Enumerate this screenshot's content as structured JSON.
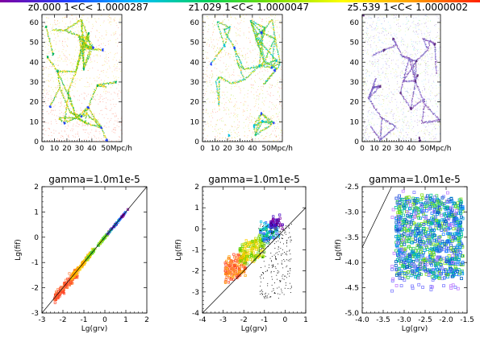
{
  "colorbar": {
    "colors": [
      "#8000a0",
      "#2040ff",
      "#00c0ff",
      "#00d060",
      "#80e000",
      "#ffff00",
      "#ffa000",
      "#ff2000"
    ]
  },
  "chart_data": [
    {
      "type": "scatter",
      "title": "z0.000  1<C< 1.0000287",
      "xlabel": "",
      "ylabel": "",
      "xlim": [
        0,
        64
      ],
      "ylim": [
        0,
        64
      ],
      "x_ticks": [
        0,
        10,
        20,
        30,
        40
      ],
      "x_tick_labels": [
        "0",
        "10",
        "20",
        "30",
        "40"
      ],
      "x_unit_label": "50Mpc/h",
      "y_ticks": [
        0,
        10,
        20,
        30,
        40,
        50,
        60
      ],
      "y_tick_labels": [
        "0",
        "10",
        "20",
        "30",
        "40",
        "50",
        "60"
      ],
      "dominant_colors": [
        "#ff6040",
        "#ffc000",
        "#e0e000",
        "#60d000",
        "#00b060",
        "#2040ff"
      ]
    },
    {
      "type": "scatter",
      "title": "z1.029  1<C< 1.0000047",
      "xlabel": "",
      "ylabel": "",
      "xlim": [
        0,
        64
      ],
      "ylim": [
        0,
        64
      ],
      "x_ticks": [
        0,
        10,
        20,
        30,
        40
      ],
      "x_tick_labels": [
        "0",
        "10",
        "20",
        "30",
        "40"
      ],
      "x_unit_label": "50Mpc/h",
      "y_ticks": [
        0,
        10,
        20,
        30,
        40,
        50,
        60
      ],
      "y_tick_labels": [
        "0",
        "10",
        "20",
        "30",
        "40",
        "50",
        "60"
      ],
      "dominant_colors": [
        "#ff6040",
        "#ffc000",
        "#a0e000",
        "#00c060",
        "#00c0e0",
        "#2040ff"
      ]
    },
    {
      "type": "scatter",
      "title": "z5.539  1<C< 1.0000002",
      "xlabel": "",
      "ylabel": "",
      "xlim": [
        0,
        64
      ],
      "ylim": [
        0,
        64
      ],
      "x_ticks": [
        0,
        10,
        20,
        30,
        40
      ],
      "x_tick_labels": [
        "0",
        "10",
        "20",
        "30",
        "40"
      ],
      "x_unit_label": "50Mpc/h",
      "y_ticks": [
        0,
        10,
        20,
        30,
        40,
        50,
        60
      ],
      "y_tick_labels": [
        "0",
        "10",
        "20",
        "30",
        "40",
        "50",
        "60"
      ],
      "dominant_colors": [
        "#9060c0",
        "#a0a0ff",
        "#80e0ff",
        "#c0ff80",
        "#e0e060"
      ]
    },
    {
      "type": "scatter",
      "title": "gamma=1.0m1e-5",
      "xlabel": "Lg(grv)",
      "ylabel": "Lg(fif)",
      "xlim": [
        -3,
        2
      ],
      "ylim": [
        -3,
        2
      ],
      "x_ticks": [
        -3,
        -2,
        -1,
        0,
        1,
        2
      ],
      "x_tick_labels": [
        "-3",
        "-2",
        "-1",
        "0",
        "1",
        "2"
      ],
      "y_ticks": [
        -3,
        -2,
        -1,
        0,
        1,
        2
      ],
      "y_tick_labels": [
        "-3",
        "-2",
        "-1",
        "0",
        "1",
        "2"
      ],
      "reference_line": [
        [
          -3,
          -3
        ],
        [
          2,
          2
        ]
      ],
      "clusters": [
        {
          "x_range": [
            -2.4,
            -1.3
          ],
          "y_center_offset": -0.05,
          "spread": 0.22,
          "colors": [
            "#ff4020",
            "#ff8040"
          ],
          "n": 140
        },
        {
          "x_range": [
            -1.6,
            -0.6
          ],
          "y_center_offset": 0.0,
          "spread": 0.1,
          "colors": [
            "#ffa000",
            "#ffd000"
          ],
          "n": 110
        },
        {
          "x_range": [
            -0.9,
            0.2
          ],
          "y_center_offset": 0.0,
          "spread": 0.05,
          "colors": [
            "#a0e000",
            "#40d040"
          ],
          "n": 70
        },
        {
          "x_range": [
            0.1,
            1.1
          ],
          "y_center_offset": 0.0,
          "spread": 0.03,
          "colors": [
            "#00c0a0",
            "#2060ff",
            "#8000a0"
          ],
          "n": 45
        }
      ]
    },
    {
      "type": "scatter",
      "title": "gamma=1.0m1e-5",
      "xlabel": "Lg(grv)",
      "ylabel": "Lg(fif)",
      "xlim": [
        -4,
        1
      ],
      "ylim": [
        -4,
        2
      ],
      "x_ticks": [
        -4,
        -3,
        -2,
        -1,
        0,
        1
      ],
      "x_tick_labels": [
        "-4",
        "-3",
        "-2",
        "-1",
        "0",
        "1"
      ],
      "y_ticks": [
        -4,
        -3,
        -2,
        -1,
        0,
        1,
        2
      ],
      "y_tick_labels": [
        "-4",
        "-3",
        "-2",
        "-1",
        "0",
        "1",
        "2"
      ],
      "reference_line": [
        [
          -4,
          -4
        ],
        [
          1,
          1
        ]
      ],
      "clusters": [
        {
          "x_range": [
            -2.9,
            -1.9
          ],
          "y_range": [
            -2.5,
            -1.0
          ],
          "colors": [
            "#ff4020",
            "#ff8040",
            "#ffa000"
          ],
          "n": 170
        },
        {
          "x_range": [
            -2.2,
            -1.0
          ],
          "y_range": [
            -1.6,
            -0.2
          ],
          "colors": [
            "#ffd000",
            "#c0e000",
            "#60d000"
          ],
          "n": 170
        },
        {
          "x_range": [
            -1.2,
            -0.3
          ],
          "y_range": [
            -0.6,
            0.5
          ],
          "colors": [
            "#00c060",
            "#00c0e0",
            "#2060ff"
          ],
          "n": 90
        },
        {
          "x_range": [
            -0.7,
            -0.1
          ],
          "y_range": [
            0.1,
            0.8
          ],
          "colors": [
            "#4000c0",
            "#8000a0"
          ],
          "n": 40
        },
        {
          "x_range": [
            -1.3,
            0.3
          ],
          "y_range": [
            -3.3,
            0.3
          ],
          "colors": [
            "#000000"
          ],
          "n": 260
        }
      ]
    },
    {
      "type": "scatter",
      "title": "gamma=1.0m1e-5",
      "xlabel": "Lg(grv)",
      "ylabel": "Lg(fif)",
      "xlim": [
        -4,
        -1.5
      ],
      "ylim": [
        -5,
        -2.5
      ],
      "x_ticks": [
        -4,
        -3.5,
        -3,
        -2.5,
        -2,
        -1.5
      ],
      "x_tick_labels": [
        "-4.0",
        "-3.5",
        "-3.0",
        "-2.5",
        "-2.0",
        "-1.5"
      ],
      "y_ticks": [
        -5,
        -4.5,
        -4,
        -3.5,
        -3,
        -2.5
      ],
      "y_tick_labels": [
        "-5.0",
        "-4.5",
        "-4.0",
        "-3.5",
        "-3.0",
        "-2.5"
      ],
      "reference_line": [
        [
          -4,
          -3.7
        ],
        [
          -3.3,
          -2.5
        ]
      ],
      "clusters": [
        {
          "x_range": [
            -3.2,
            -1.6
          ],
          "y_range": [
            -4.3,
            -2.7
          ],
          "colors": [
            "#2050e0",
            "#2080ff",
            "#00a0e0",
            "#00c0a0",
            "#40d060",
            "#80e020",
            "#0060c0"
          ],
          "n": 900
        },
        {
          "x_range": [
            -3.3,
            -1.7
          ],
          "y_range": [
            -4.6,
            -2.6
          ],
          "colors": [
            "#8080ff",
            "#c080ff"
          ],
          "n": 120
        }
      ]
    }
  ]
}
